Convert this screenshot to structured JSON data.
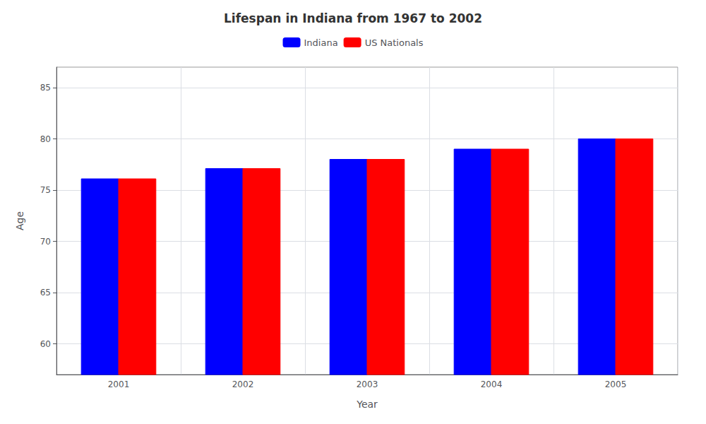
{
  "chart_data": {
    "type": "bar",
    "title": "Lifespan in Indiana from 1967 to 2002",
    "xlabel": "Year",
    "ylabel": "Age",
    "categories": [
      "2001",
      "2002",
      "2003",
      "2004",
      "2005"
    ],
    "series": [
      {
        "name": "Indiana",
        "color": "#0000ff",
        "values": [
          76.1,
          77.1,
          78.0,
          79.0,
          80.0
        ]
      },
      {
        "name": "US Nationals",
        "color": "#ff0000",
        "values": [
          76.1,
          77.1,
          78.0,
          79.0,
          80.0
        ]
      }
    ],
    "ylim": [
      57,
      87
    ],
    "yticks": [
      60,
      65,
      70,
      75,
      80,
      85
    ],
    "grid": true
  }
}
